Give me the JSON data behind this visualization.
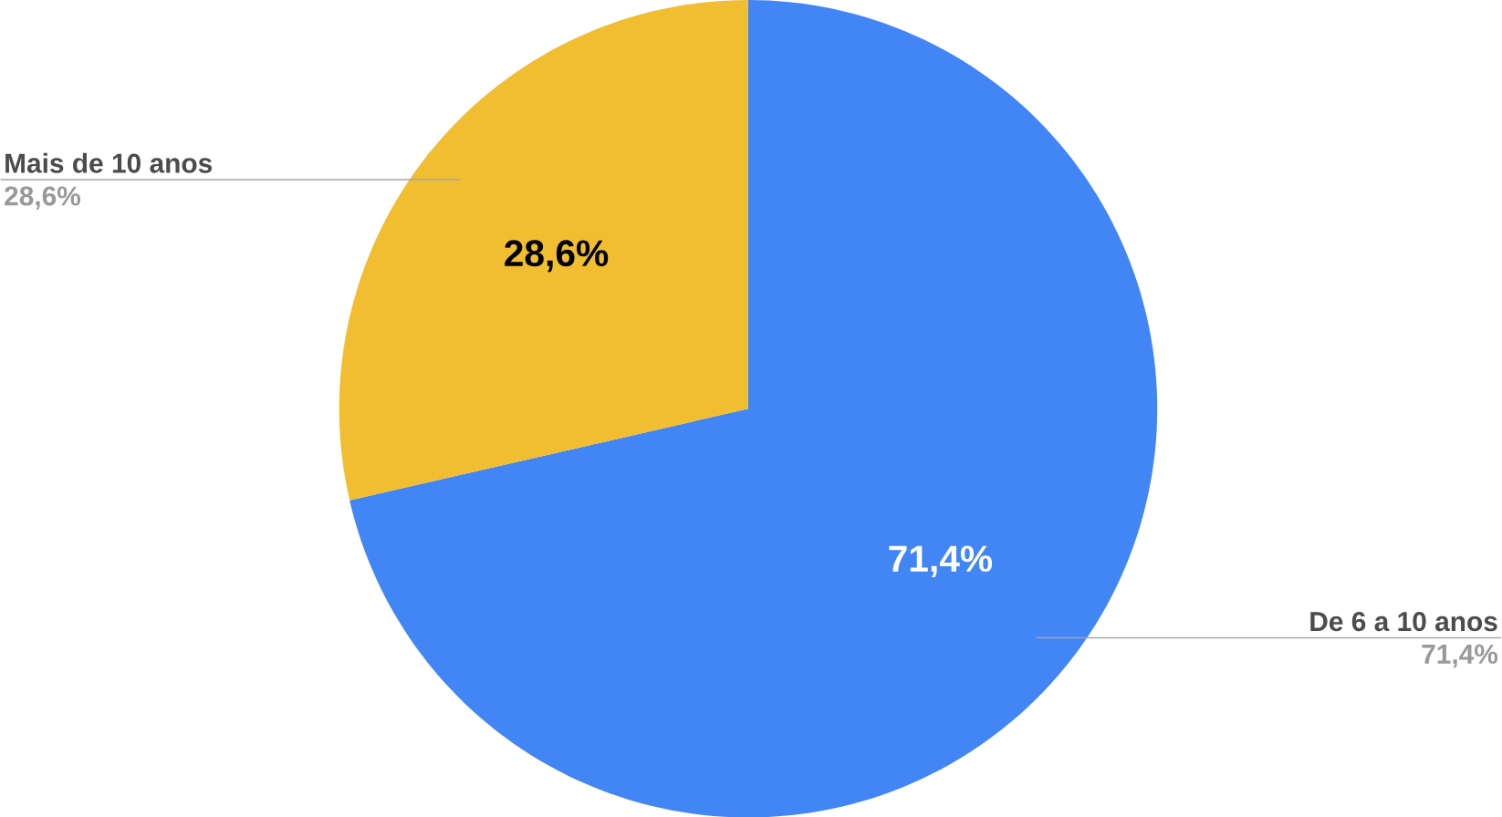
{
  "chart_data": {
    "type": "pie",
    "categories": [
      "De 6 a 10 anos",
      "Mais de 10 anos"
    ],
    "values": [
      71.4,
      28.6
    ],
    "colors": [
      "#4285f4",
      "#f1be32"
    ],
    "value_labels": [
      "71,4%",
      "28,6%"
    ]
  }
}
